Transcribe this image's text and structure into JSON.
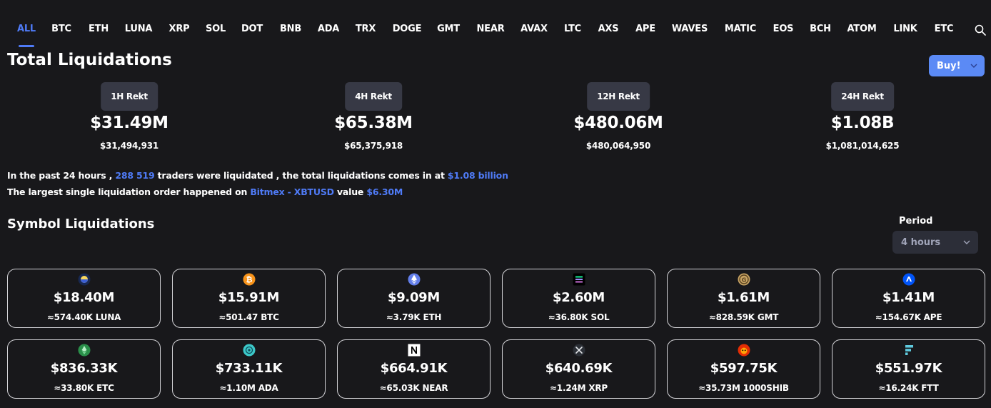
{
  "tabs": [
    "ALL",
    "BTC",
    "ETH",
    "LUNA",
    "XRP",
    "SOL",
    "DOT",
    "BNB",
    "ADA",
    "TRX",
    "DOGE",
    "GMT",
    "NEAR",
    "AVAX",
    "LTC",
    "AXS",
    "APE",
    "WAVES",
    "MATIC",
    "EOS",
    "BCH",
    "ATOM",
    "LINK",
    "ETC"
  ],
  "active_tab": "ALL",
  "page_title": "Total Liquidations",
  "buy_button": "Buy!",
  "rekt": [
    {
      "label": "1H Rekt",
      "value": "$31.49M",
      "exact": "$31,494,931"
    },
    {
      "label": "4H Rekt",
      "value": "$65.38M",
      "exact": "$65,375,918"
    },
    {
      "label": "12H Rekt",
      "value": "$480.06M",
      "exact": "$480,064,950"
    },
    {
      "label": "24H Rekt",
      "value": "$1.08B",
      "exact": "$1,081,014,625"
    }
  ],
  "summary": {
    "line1_a": "In the past 24 hours ,",
    "line1_traders": "288 519",
    "line1_b": "traders were liquidated , the total liquidations comes in at",
    "line1_total": "$1.08 billion",
    "line2_a": "The largest single liquidation order happened on",
    "line2_exchange": "Bitmex - XBTUSD",
    "line2_b": "value",
    "line2_value": "$6.30M"
  },
  "symbol_section": {
    "title": "Symbol Liquidations",
    "period_label": "Period",
    "period_value": "4 hours"
  },
  "symbols": [
    {
      "icon": "luna-icon",
      "value": "$18.40M",
      "amount": "≈574.40K LUNA"
    },
    {
      "icon": "btc-icon",
      "value": "$15.91M",
      "amount": "≈501.47 BTC"
    },
    {
      "icon": "eth-icon",
      "value": "$9.09M",
      "amount": "≈3.79K ETH"
    },
    {
      "icon": "sol-icon",
      "value": "$2.60M",
      "amount": "≈36.80K SOL"
    },
    {
      "icon": "gmt-icon",
      "value": "$1.61M",
      "amount": "≈828.59K GMT"
    },
    {
      "icon": "ape-icon",
      "value": "$1.41M",
      "amount": "≈154.67K APE"
    },
    {
      "icon": "etc-icon",
      "value": "$836.33K",
      "amount": "≈33.80K ETC"
    },
    {
      "icon": "ada-icon",
      "value": "$733.11K",
      "amount": "≈1.10M ADA"
    },
    {
      "icon": "near-icon",
      "value": "$664.91K",
      "amount": "≈65.03K NEAR"
    },
    {
      "icon": "xrp-icon",
      "value": "$640.69K",
      "amount": "≈1.24M XRP"
    },
    {
      "icon": "shib-icon",
      "value": "$597.75K",
      "amount": "≈35.73M 1000SHIB"
    },
    {
      "icon": "ftt-icon",
      "value": "$551.97K",
      "amount": "≈16.24K FTT"
    }
  ],
  "colors": {
    "accent": "#4f7bf7",
    "background": "#18181b",
    "badge": "#373945",
    "buy_button": "#5b8af5"
  }
}
